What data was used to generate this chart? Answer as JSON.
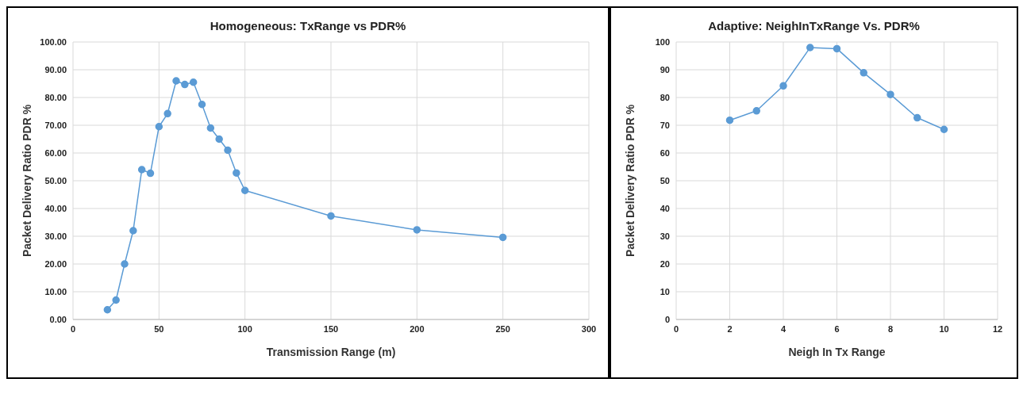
{
  "chart_data": [
    {
      "type": "line",
      "title": "Homogeneous: TxRange vs PDR%",
      "xlabel": "Transmission Range (m)",
      "ylabel": "Packet Delivery Ratio PDR %",
      "x": [
        20,
        25,
        30,
        35,
        40,
        45,
        50,
        55,
        60,
        65,
        70,
        75,
        80,
        85,
        90,
        95,
        100,
        150,
        200,
        250
      ],
      "series": [
        {
          "color": "#5b9bd5",
          "values": [
            3.5,
            7,
            20,
            32,
            54,
            52.7,
            69.5,
            74.2,
            86,
            84.7,
            85.5,
            77.5,
            69,
            65,
            61,
            52.8,
            46.5,
            37.3,
            32.3,
            29.6
          ]
        }
      ],
      "xlim": [
        0,
        300
      ],
      "xticks": [
        0,
        50,
        100,
        150,
        200,
        250,
        300
      ],
      "ylim": [
        0,
        100
      ],
      "yticks": [
        {
          "value": 0,
          "label": "0.00"
        },
        {
          "value": 10,
          "label": "10.00"
        },
        {
          "value": 20,
          "label": "20.00"
        },
        {
          "value": 30,
          "label": "30.00"
        },
        {
          "value": 40,
          "label": "40.00"
        },
        {
          "value": 50,
          "label": "50.00"
        },
        {
          "value": 60,
          "label": "60.00"
        },
        {
          "value": 70,
          "label": "70.00"
        },
        {
          "value": 80,
          "label": "80.00"
        },
        {
          "value": 90,
          "label": "90.00"
        },
        {
          "value": 100,
          "label": "100.00"
        }
      ],
      "grid": true,
      "marker": "circle",
      "line_style": "solid"
    },
    {
      "type": "line",
      "title": "Adaptive: NeighInTxRange Vs. PDR%",
      "xlabel": "Neigh In Tx Range",
      "ylabel": "Packet Delivery Ratio PDR %",
      "x": [
        2,
        3,
        4,
        5,
        6,
        7,
        8,
        9,
        10
      ],
      "series": [
        {
          "color": "#5b9bd5",
          "values": [
            71.8,
            75.2,
            84.2,
            98,
            97.6,
            88.9,
            81.1,
            72.7,
            68.5
          ]
        }
      ],
      "xlim": [
        0,
        12
      ],
      "xticks": [
        0,
        2,
        4,
        6,
        8,
        10,
        12
      ],
      "ylim": [
        0,
        100
      ],
      "yticks": [
        0,
        10,
        20,
        30,
        40,
        50,
        60,
        70,
        80,
        90,
        100
      ],
      "grid": true,
      "marker": "circle",
      "line_style": "solid"
    }
  ]
}
